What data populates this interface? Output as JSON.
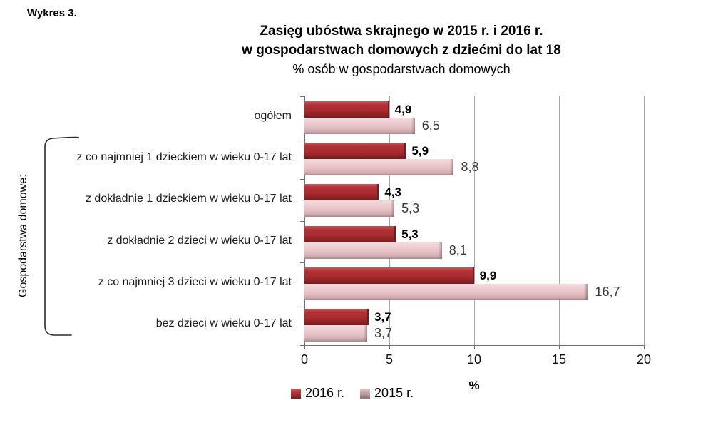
{
  "figure_label": "Wykres 3.",
  "title": {
    "line1": "Zasięg ubóstwa skrajnego w 2015 r. i 2016 r.",
    "line2": "w gospodarstwach domowych z dziećmi do lat 18",
    "line3": "% osób w gospodarstwach domowych"
  },
  "group_label": "Gospodarstwa domowe:",
  "chart_data": {
    "type": "bar",
    "orientation": "horizontal",
    "title": "Zasięg ubóstwa skrajnego w 2015 r. i 2016 r. w gospodarstwach domowych z dziećmi do lat 18, % osób w gospodarstwach domowych",
    "categories": [
      "ogółem",
      "z co najmniej 1 dzieckiem w wieku 0-17 lat",
      "z dokładnie 1 dzieckiem w wieku 0-17 lat",
      "z dokładnie 2 dzieci w wieku 0-17 lat",
      "z co najmniej 3 dzieci w wieku 0-17 lat",
      "bez dzieci w wieku 0-17 lat"
    ],
    "series": [
      {
        "name": "2016 r.",
        "color": "#a92c30",
        "values": [
          4.9,
          5.9,
          4.3,
          5.3,
          9.9,
          3.7
        ]
      },
      {
        "name": "2015 r.",
        "color": "#e3bdc1",
        "values": [
          6.5,
          8.8,
          5.3,
          8.1,
          16.7,
          3.7
        ]
      }
    ],
    "xlabel": "%",
    "xlim": [
      0,
      20
    ],
    "xticks": [
      0,
      5,
      10,
      15,
      20
    ],
    "grid": true,
    "legend_position": "bottom",
    "decimal_separator": ",",
    "bracket_category_range": [
      1,
      5
    ]
  }
}
